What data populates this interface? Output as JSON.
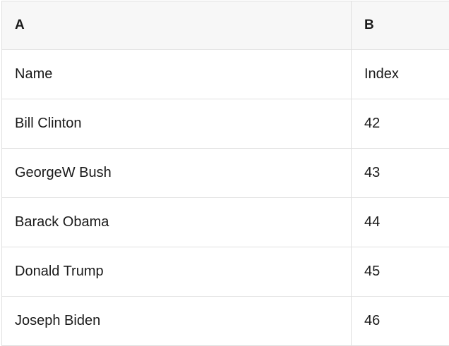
{
  "table": {
    "columns": [
      {
        "id": "A",
        "header": "A"
      },
      {
        "id": "B",
        "header": "B"
      }
    ],
    "rows": [
      {
        "a": "Name",
        "b": "Index"
      },
      {
        "a": "Bill Clinton",
        "b": "42"
      },
      {
        "a": "GeorgeW Bush",
        "b": "43"
      },
      {
        "a": "Barack Obama",
        "b": "44"
      },
      {
        "a": "Donald Trump",
        "b": "45"
      },
      {
        "a": "Joseph Biden",
        "b": "46"
      }
    ],
    "colors": {
      "header_bg": "#f7f7f7",
      "border": "#e0e0e0",
      "text": "#1a1a1a"
    }
  }
}
